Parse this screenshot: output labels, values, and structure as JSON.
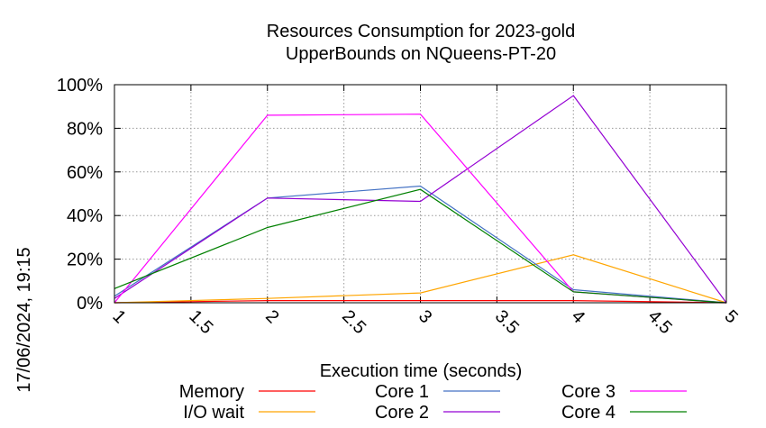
{
  "chart_data": {
    "type": "line",
    "title_line1": "Resources Consumption for 2023-gold",
    "title_line2": "UpperBounds on NQueens-PT-20",
    "xlabel": "Execution time (seconds)",
    "ylabel": "",
    "side_label": "17/06/2024, 19:15",
    "xlim": [
      1,
      5
    ],
    "ylim": [
      0,
      100
    ],
    "x_ticks": [
      "1",
      "1.5",
      "2",
      "2.5",
      "3",
      "3.5",
      "4",
      "4.5",
      "5"
    ],
    "y_ticks": [
      "0%",
      "20%",
      "40%",
      "60%",
      "80%",
      "100%"
    ],
    "grid": true,
    "legend_position": "bottom",
    "series": [
      {
        "name": "Memory",
        "color": "#ff0000",
        "points": [
          [
            1,
            0
          ],
          [
            2,
            1
          ],
          [
            3,
            1
          ],
          [
            4,
            1
          ],
          [
            5,
            0
          ]
        ]
      },
      {
        "name": "I/O wait",
        "color": "#ffa500",
        "points": [
          [
            1,
            0
          ],
          [
            2,
            2
          ],
          [
            3,
            4.5
          ],
          [
            4,
            22
          ],
          [
            5,
            0
          ]
        ]
      },
      {
        "name": "Core 1",
        "color": "#4472c4",
        "points": [
          [
            1,
            3
          ],
          [
            2,
            48
          ],
          [
            3,
            53.5
          ],
          [
            4,
            6
          ],
          [
            5,
            0
          ]
        ]
      },
      {
        "name": "Core 2",
        "color": "#9400d3",
        "points": [
          [
            1,
            2
          ],
          [
            2,
            48
          ],
          [
            3,
            46.5
          ],
          [
            4,
            95
          ],
          [
            5,
            0
          ]
        ]
      },
      {
        "name": "Core 3",
        "color": "#ff00ff",
        "points": [
          [
            1,
            0
          ],
          [
            2,
            86
          ],
          [
            3,
            86.5
          ],
          [
            4,
            5
          ],
          [
            5,
            0
          ]
        ]
      },
      {
        "name": "Core 4",
        "color": "#008000",
        "points": [
          [
            1,
            6.5
          ],
          [
            2,
            34.5
          ],
          [
            3,
            52
          ],
          [
            4,
            5
          ],
          [
            5,
            0
          ]
        ]
      }
    ]
  }
}
